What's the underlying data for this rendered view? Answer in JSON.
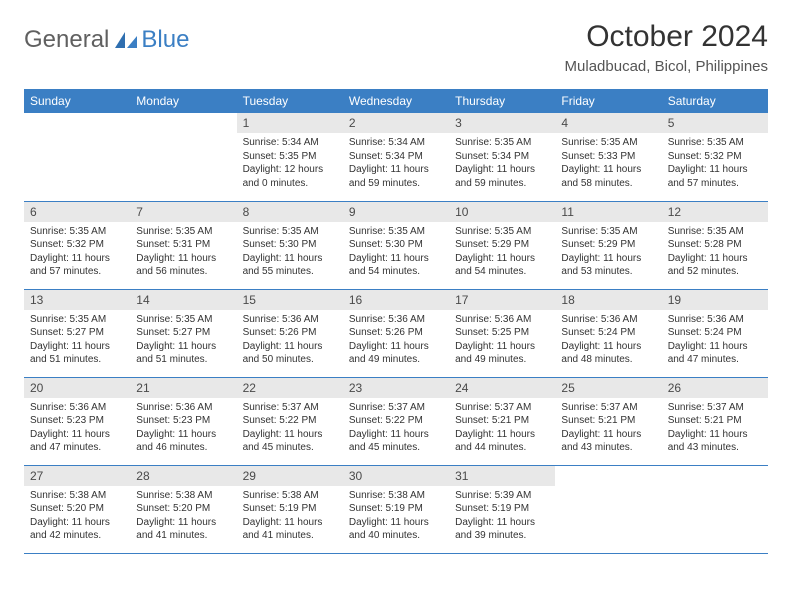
{
  "logo": {
    "text1": "General",
    "text2": "Blue"
  },
  "title": "October 2024",
  "location": "Muladbucad, Bicol, Philippines",
  "colors": {
    "header_bg": "#3b7fc4",
    "header_fg": "#ffffff",
    "daynum_bg": "#e8e8e8",
    "border": "#3b7fc4",
    "logo_gray": "#606060",
    "logo_blue": "#3b7fc4"
  },
  "weekdays": [
    "Sunday",
    "Monday",
    "Tuesday",
    "Wednesday",
    "Thursday",
    "Friday",
    "Saturday"
  ],
  "weeks": [
    [
      {
        "n": "",
        "sr": "",
        "ss": "",
        "dl": ""
      },
      {
        "n": "",
        "sr": "",
        "ss": "",
        "dl": ""
      },
      {
        "n": "1",
        "sr": "Sunrise: 5:34 AM",
        "ss": "Sunset: 5:35 PM",
        "dl": "Daylight: 12 hours and 0 minutes."
      },
      {
        "n": "2",
        "sr": "Sunrise: 5:34 AM",
        "ss": "Sunset: 5:34 PM",
        "dl": "Daylight: 11 hours and 59 minutes."
      },
      {
        "n": "3",
        "sr": "Sunrise: 5:35 AM",
        "ss": "Sunset: 5:34 PM",
        "dl": "Daylight: 11 hours and 59 minutes."
      },
      {
        "n": "4",
        "sr": "Sunrise: 5:35 AM",
        "ss": "Sunset: 5:33 PM",
        "dl": "Daylight: 11 hours and 58 minutes."
      },
      {
        "n": "5",
        "sr": "Sunrise: 5:35 AM",
        "ss": "Sunset: 5:32 PM",
        "dl": "Daylight: 11 hours and 57 minutes."
      }
    ],
    [
      {
        "n": "6",
        "sr": "Sunrise: 5:35 AM",
        "ss": "Sunset: 5:32 PM",
        "dl": "Daylight: 11 hours and 57 minutes."
      },
      {
        "n": "7",
        "sr": "Sunrise: 5:35 AM",
        "ss": "Sunset: 5:31 PM",
        "dl": "Daylight: 11 hours and 56 minutes."
      },
      {
        "n": "8",
        "sr": "Sunrise: 5:35 AM",
        "ss": "Sunset: 5:30 PM",
        "dl": "Daylight: 11 hours and 55 minutes."
      },
      {
        "n": "9",
        "sr": "Sunrise: 5:35 AM",
        "ss": "Sunset: 5:30 PM",
        "dl": "Daylight: 11 hours and 54 minutes."
      },
      {
        "n": "10",
        "sr": "Sunrise: 5:35 AM",
        "ss": "Sunset: 5:29 PM",
        "dl": "Daylight: 11 hours and 54 minutes."
      },
      {
        "n": "11",
        "sr": "Sunrise: 5:35 AM",
        "ss": "Sunset: 5:29 PM",
        "dl": "Daylight: 11 hours and 53 minutes."
      },
      {
        "n": "12",
        "sr": "Sunrise: 5:35 AM",
        "ss": "Sunset: 5:28 PM",
        "dl": "Daylight: 11 hours and 52 minutes."
      }
    ],
    [
      {
        "n": "13",
        "sr": "Sunrise: 5:35 AM",
        "ss": "Sunset: 5:27 PM",
        "dl": "Daylight: 11 hours and 51 minutes."
      },
      {
        "n": "14",
        "sr": "Sunrise: 5:35 AM",
        "ss": "Sunset: 5:27 PM",
        "dl": "Daylight: 11 hours and 51 minutes."
      },
      {
        "n": "15",
        "sr": "Sunrise: 5:36 AM",
        "ss": "Sunset: 5:26 PM",
        "dl": "Daylight: 11 hours and 50 minutes."
      },
      {
        "n": "16",
        "sr": "Sunrise: 5:36 AM",
        "ss": "Sunset: 5:26 PM",
        "dl": "Daylight: 11 hours and 49 minutes."
      },
      {
        "n": "17",
        "sr": "Sunrise: 5:36 AM",
        "ss": "Sunset: 5:25 PM",
        "dl": "Daylight: 11 hours and 49 minutes."
      },
      {
        "n": "18",
        "sr": "Sunrise: 5:36 AM",
        "ss": "Sunset: 5:24 PM",
        "dl": "Daylight: 11 hours and 48 minutes."
      },
      {
        "n": "19",
        "sr": "Sunrise: 5:36 AM",
        "ss": "Sunset: 5:24 PM",
        "dl": "Daylight: 11 hours and 47 minutes."
      }
    ],
    [
      {
        "n": "20",
        "sr": "Sunrise: 5:36 AM",
        "ss": "Sunset: 5:23 PM",
        "dl": "Daylight: 11 hours and 47 minutes."
      },
      {
        "n": "21",
        "sr": "Sunrise: 5:36 AM",
        "ss": "Sunset: 5:23 PM",
        "dl": "Daylight: 11 hours and 46 minutes."
      },
      {
        "n": "22",
        "sr": "Sunrise: 5:37 AM",
        "ss": "Sunset: 5:22 PM",
        "dl": "Daylight: 11 hours and 45 minutes."
      },
      {
        "n": "23",
        "sr": "Sunrise: 5:37 AM",
        "ss": "Sunset: 5:22 PM",
        "dl": "Daylight: 11 hours and 45 minutes."
      },
      {
        "n": "24",
        "sr": "Sunrise: 5:37 AM",
        "ss": "Sunset: 5:21 PM",
        "dl": "Daylight: 11 hours and 44 minutes."
      },
      {
        "n": "25",
        "sr": "Sunrise: 5:37 AM",
        "ss": "Sunset: 5:21 PM",
        "dl": "Daylight: 11 hours and 43 minutes."
      },
      {
        "n": "26",
        "sr": "Sunrise: 5:37 AM",
        "ss": "Sunset: 5:21 PM",
        "dl": "Daylight: 11 hours and 43 minutes."
      }
    ],
    [
      {
        "n": "27",
        "sr": "Sunrise: 5:38 AM",
        "ss": "Sunset: 5:20 PM",
        "dl": "Daylight: 11 hours and 42 minutes."
      },
      {
        "n": "28",
        "sr": "Sunrise: 5:38 AM",
        "ss": "Sunset: 5:20 PM",
        "dl": "Daylight: 11 hours and 41 minutes."
      },
      {
        "n": "29",
        "sr": "Sunrise: 5:38 AM",
        "ss": "Sunset: 5:19 PM",
        "dl": "Daylight: 11 hours and 41 minutes."
      },
      {
        "n": "30",
        "sr": "Sunrise: 5:38 AM",
        "ss": "Sunset: 5:19 PM",
        "dl": "Daylight: 11 hours and 40 minutes."
      },
      {
        "n": "31",
        "sr": "Sunrise: 5:39 AM",
        "ss": "Sunset: 5:19 PM",
        "dl": "Daylight: 11 hours and 39 minutes."
      },
      {
        "n": "",
        "sr": "",
        "ss": "",
        "dl": ""
      },
      {
        "n": "",
        "sr": "",
        "ss": "",
        "dl": ""
      }
    ]
  ]
}
